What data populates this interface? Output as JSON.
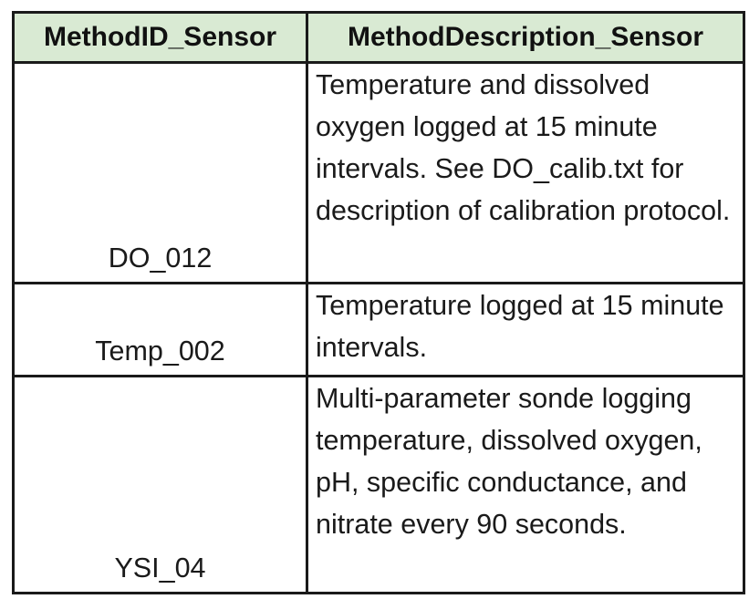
{
  "table": {
    "headers": [
      "MethodID_Sensor",
      "MethodDescription_Sensor"
    ],
    "rows": [
      {
        "id": "DO_012",
        "description": "Temperature and dissolved oxygen logged at 15 minute intervals. See DO_calib.txt for description of calibration protocol."
      },
      {
        "id": "Temp_002",
        "description": "Temperature logged at 15 minute intervals."
      },
      {
        "id": "YSI_04",
        "description": "Multi-parameter sonde logging temperature, dissolved oxygen, pH, specific conductance, and nitrate every 90 seconds."
      }
    ]
  },
  "colors": {
    "header_background": "#d9ead3",
    "border": "#1a1a1a"
  }
}
